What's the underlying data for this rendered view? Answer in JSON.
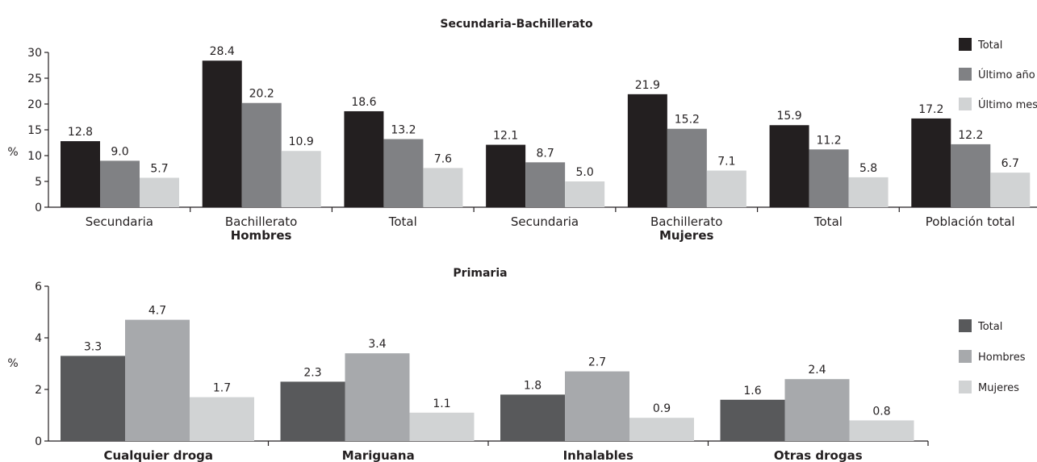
{
  "chart_data": [
    {
      "type": "bar",
      "title": "Secundaria-Bachillerato",
      "ylabel": "%",
      "ylim": [
        0,
        30
      ],
      "yticks": [
        0,
        5,
        10,
        15,
        20,
        25,
        30
      ],
      "categories": [
        "Secundaria",
        "Bachillerato",
        "Total",
        "Secundaria",
        "Bachillerato",
        "Total",
        "Población total"
      ],
      "groups": [
        {
          "label": "Hombres",
          "under_category": 1
        },
        {
          "label": "Mujeres",
          "under_category": 4
        }
      ],
      "series": [
        {
          "name": "Total",
          "color": "#231f20",
          "values": [
            12.8,
            28.4,
            18.6,
            12.1,
            21.9,
            15.9,
            17.2
          ]
        },
        {
          "name": "Último año",
          "color": "#808184",
          "values": [
            9.0,
            20.2,
            13.2,
            8.7,
            15.2,
            11.2,
            12.2
          ]
        },
        {
          "name": "Último mes",
          "color": "#d1d3d4",
          "values": [
            5.7,
            10.9,
            7.6,
            5.0,
            7.1,
            5.8,
            6.7
          ]
        }
      ],
      "value_labels": [
        [
          "12.8",
          "28.4",
          "18.6",
          "12.1",
          "21.9",
          "15.9",
          "17.2"
        ],
        [
          "9.0",
          "20.2",
          "13.2",
          "8.7",
          "15.2",
          "11.2",
          "12.2"
        ],
        [
          "5.7",
          "10.9",
          "7.6",
          "5.0",
          "7.1",
          "5.8",
          "6.7"
        ]
      ],
      "legend_position": "right",
      "grid": false
    },
    {
      "type": "bar",
      "title": "Primaria",
      "ylabel": "%",
      "ylim": [
        0,
        6
      ],
      "yticks": [
        0,
        2,
        4,
        6
      ],
      "categories": [
        "Cualquier droga",
        "Mariguana",
        "Inhalables",
        "Otras drogas"
      ],
      "series": [
        {
          "name": "Total",
          "color": "#58595b",
          "values": [
            3.3,
            2.3,
            1.8,
            1.6
          ]
        },
        {
          "name": "Hombres",
          "color": "#a7a9ac",
          "values": [
            4.7,
            3.4,
            2.7,
            2.4
          ]
        },
        {
          "name": "Mujeres",
          "color": "#d1d3d4",
          "values": [
            1.7,
            1.1,
            0.9,
            0.8
          ]
        }
      ],
      "value_labels": [
        [
          "3.3",
          "2.3",
          "1.8",
          "1.6"
        ],
        [
          "4.7",
          "3.4",
          "2.7",
          "2.4"
        ],
        [
          "1.7",
          "1.1",
          "0.9",
          "0.8"
        ]
      ],
      "legend_position": "right",
      "grid": false
    }
  ]
}
